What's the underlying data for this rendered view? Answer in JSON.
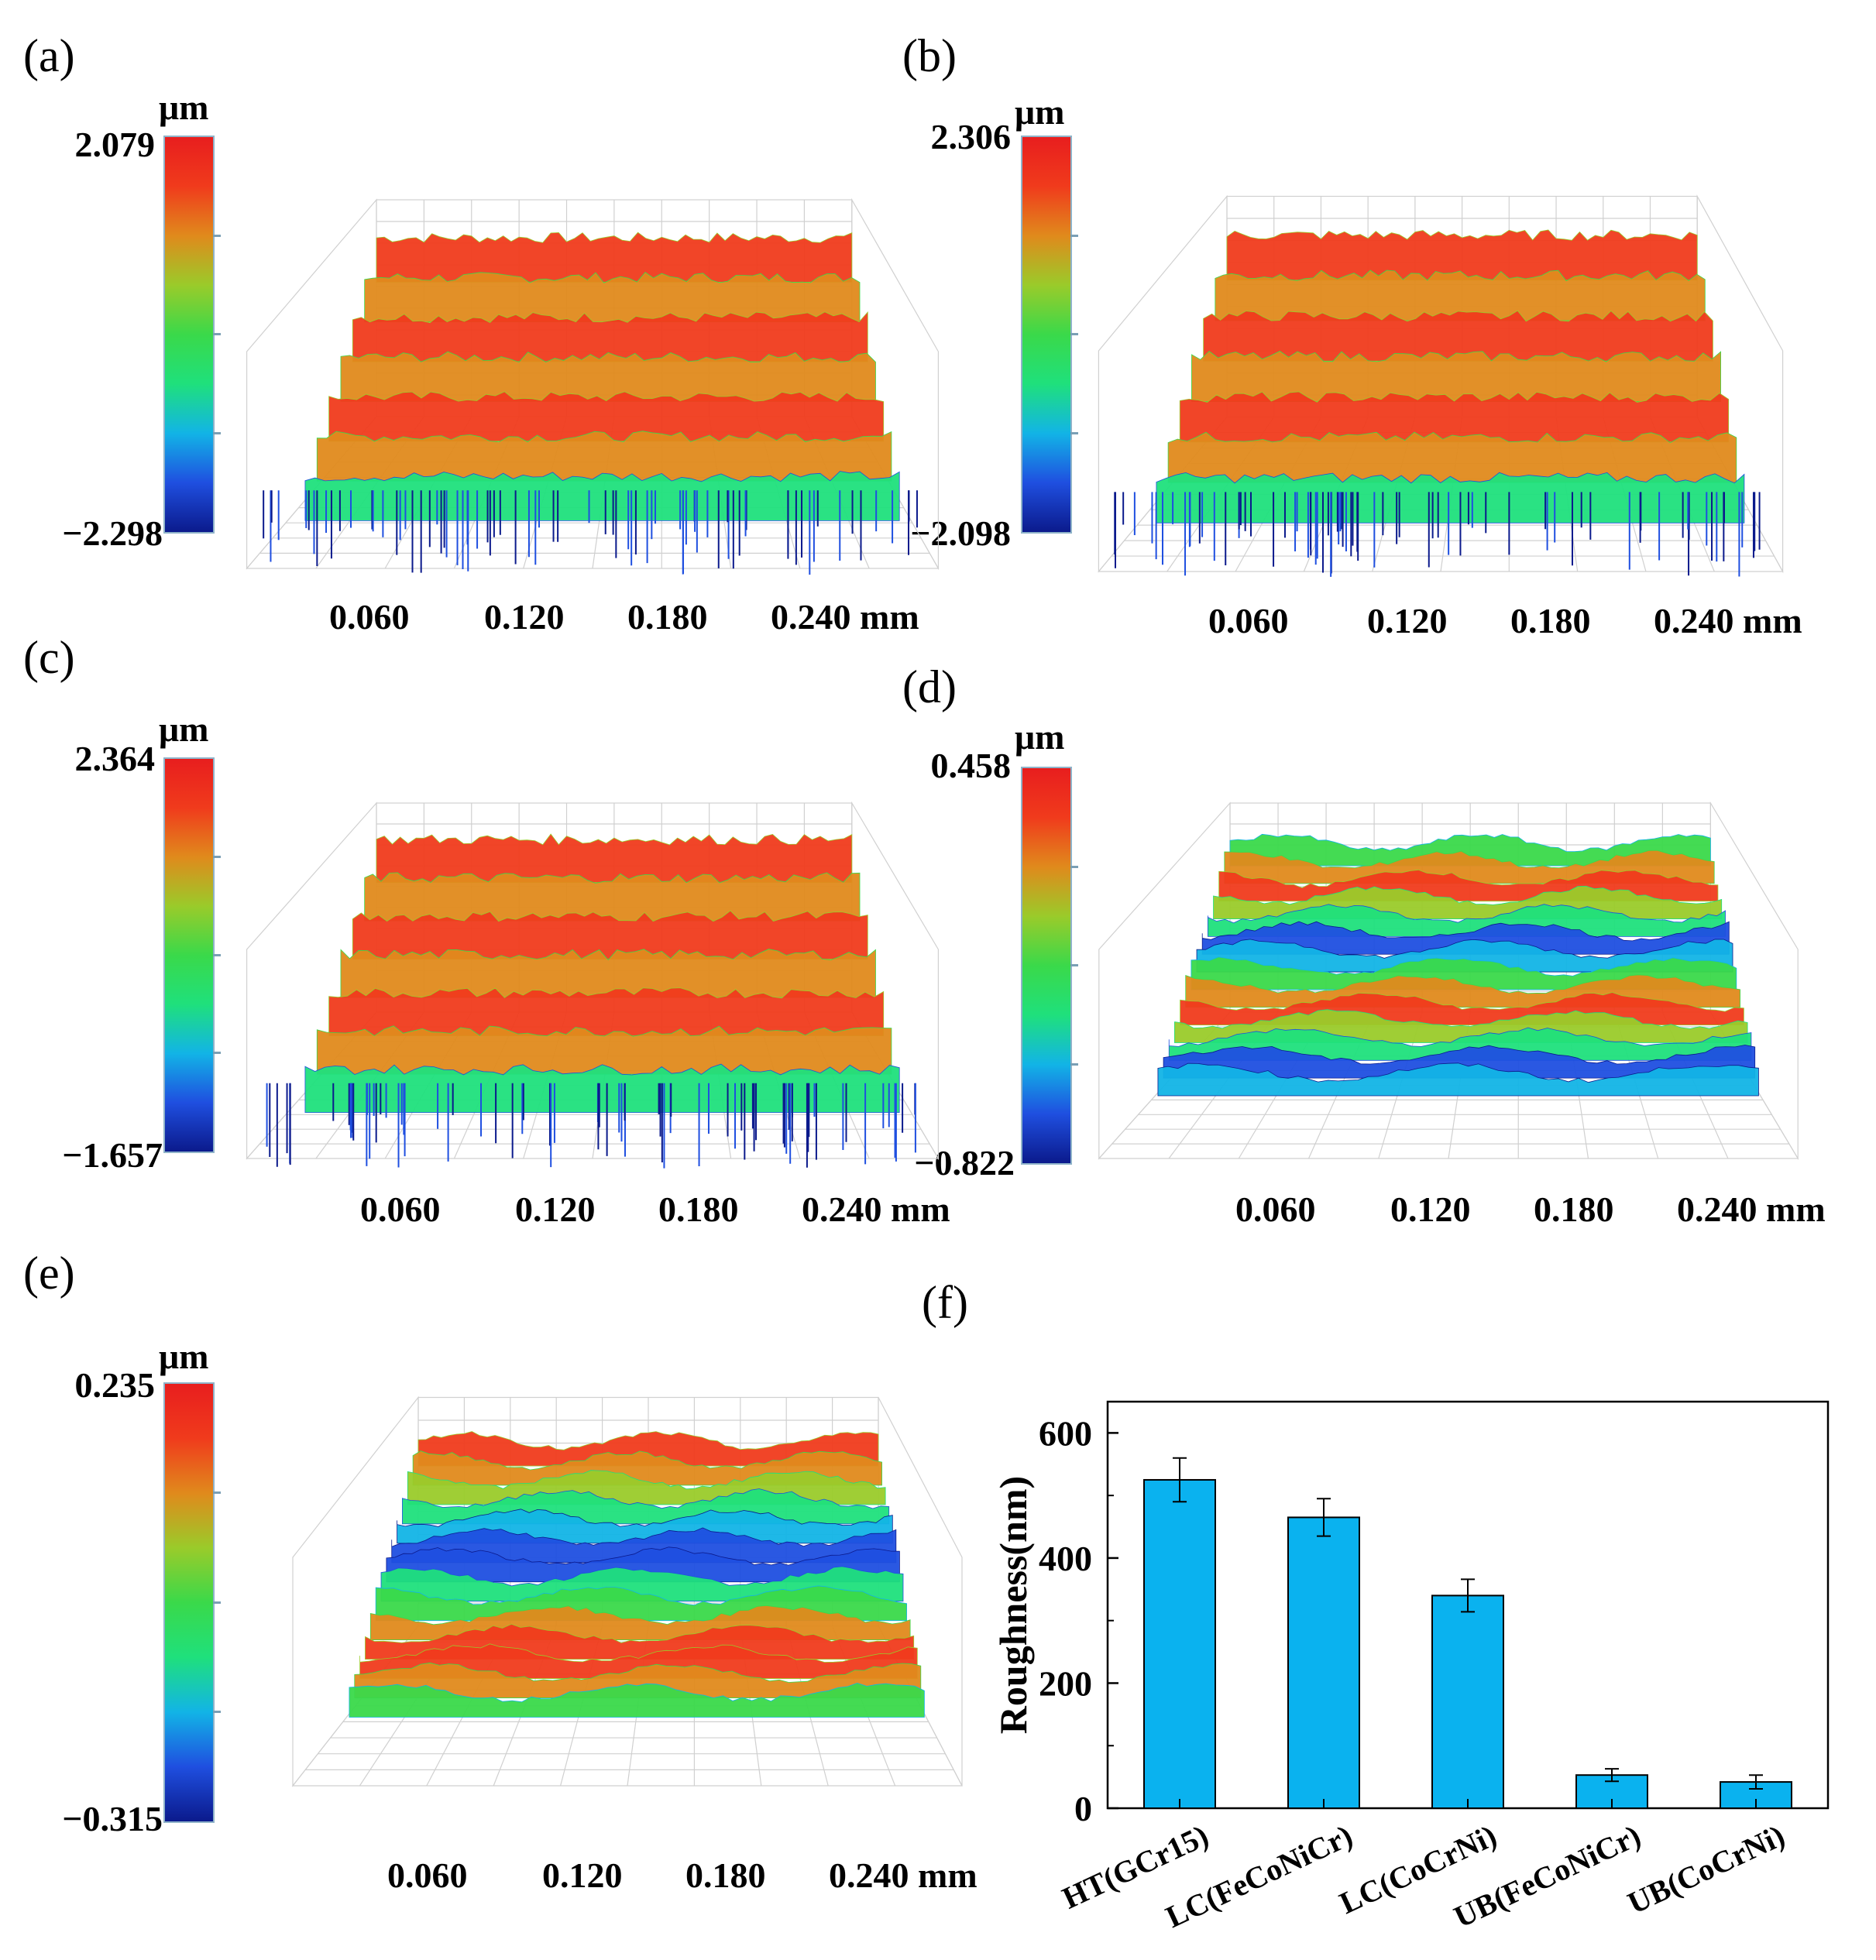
{
  "panels": [
    {
      "id": "a",
      "label": "(a)",
      "unit": "μm",
      "max": "2.079",
      "min": "−2.298",
      "xticks": [
        "0.060",
        "0.120",
        "0.180",
        "0.240 mm"
      ],
      "style": "terraces"
    },
    {
      "id": "b",
      "label": "(b)",
      "unit": "μm",
      "max": "2.306",
      "min": "−2.098",
      "xticks": [
        "0.060",
        "0.120",
        "0.180",
        "0.240 mm"
      ],
      "style": "terraces"
    },
    {
      "id": "c",
      "label": "(c)",
      "unit": "μm",
      "max": "2.364",
      "min": "−1.657",
      "xticks": [
        "0.060",
        "0.120",
        "0.180",
        "0.240 mm"
      ],
      "style": "terraces"
    },
    {
      "id": "d",
      "label": "(d)",
      "unit": "μm",
      "max": "0.458",
      "min": "−0.822",
      "xticks": [
        "0.060",
        "0.120",
        "0.180",
        "0.240 mm"
      ],
      "style": "flat"
    },
    {
      "id": "e",
      "label": "(e)",
      "unit": "μm",
      "max": "0.235",
      "min": "−0.315",
      "xticks": [
        "0.060",
        "0.120",
        "0.180",
        "0.240 mm"
      ],
      "style": "wavy"
    }
  ],
  "panel_f_label": "(f)",
  "chart_data": {
    "type": "bar",
    "title": "",
    "xlabel": "",
    "ylabel": "Roughness(nm)",
    "categories": [
      "HT(GCr15)",
      "LC(FeCoNiCr)",
      "LC(CoCrNi)",
      "UB(FeCoNiCr)",
      "UB(CoCrNi)"
    ],
    "values": [
      525,
      465,
      340,
      53,
      42
    ],
    "errors": [
      35,
      30,
      26,
      10,
      11
    ],
    "ylim": [
      0,
      650
    ],
    "yticks": [
      0,
      200,
      400,
      600
    ],
    "bar_color": "#0ab2ef",
    "grid": false
  },
  "colors": {
    "cmap": [
      "#0b1a8c",
      "#1f4fe0",
      "#12b4e6",
      "#1fe07c",
      "#3ad94a",
      "#9acb2a",
      "#e08a1c",
      "#f03b1c",
      "#e81e1e"
    ]
  }
}
